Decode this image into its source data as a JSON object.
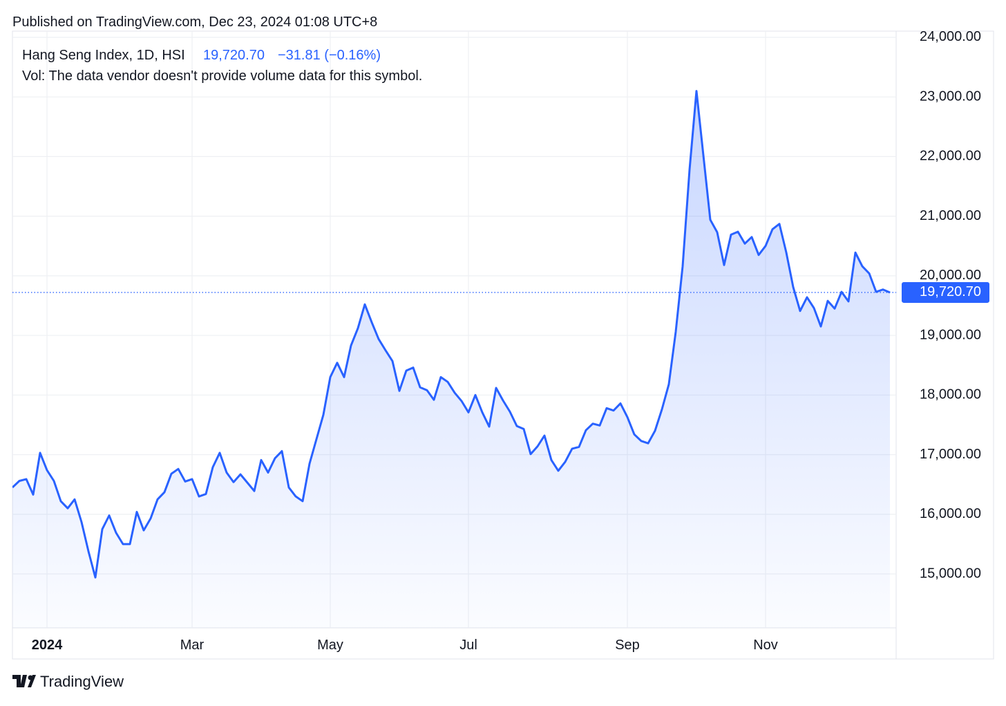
{
  "published": "Published on TradingView.com, Dec 23, 2024 01:08 UTC+8",
  "legend": {
    "symbol": "Hang Seng Index, 1D, HSI",
    "change": "−31.81 (−0.16%)",
    "vol_note": "Vol: The data vendor doesn't provide volume data for this symbol."
  },
  "footer": "TradingView",
  "chart_data": {
    "type": "area",
    "color": "#2962ff",
    "grid": true,
    "last_price": {
      "value": 19720.7,
      "label": "19,720.70"
    },
    "ylim": [
      14095,
      24104
    ],
    "yticks": [
      {
        "value": 15000,
        "label": "15,000.00"
      },
      {
        "value": 16000,
        "label": "16,000.00"
      },
      {
        "value": 17000,
        "label": "17,000.00"
      },
      {
        "value": 18000,
        "label": "18,000.00"
      },
      {
        "value": 19000,
        "label": "19,000.00"
      },
      {
        "value": 20000,
        "label": "20,000.00"
      },
      {
        "value": 21000,
        "label": "21,000.00"
      },
      {
        "value": 22000,
        "label": "22,000.00"
      },
      {
        "value": 23000,
        "label": "23,000.00"
      },
      {
        "value": 24000,
        "label": "24,000.00"
      }
    ],
    "categories": [
      null,
      null,
      null,
      null,
      null,
      "2024",
      null,
      null,
      null,
      null,
      null,
      null,
      null,
      null,
      null,
      null,
      null,
      null,
      null,
      null,
      null,
      null,
      null,
      null,
      null,
      null,
      "Mar",
      null,
      null,
      null,
      null,
      null,
      null,
      null,
      null,
      null,
      null,
      null,
      null,
      null,
      null,
      null,
      null,
      null,
      null,
      null,
      "May",
      null,
      null,
      null,
      null,
      null,
      null,
      null,
      null,
      null,
      null,
      null,
      null,
      null,
      null,
      null,
      null,
      null,
      null,
      null,
      "Jul",
      null,
      null,
      null,
      null,
      null,
      null,
      null,
      null,
      null,
      null,
      null,
      null,
      null,
      null,
      null,
      null,
      null,
      null,
      null,
      null,
      null,
      null,
      "Sep",
      null,
      null,
      null,
      null,
      null,
      null,
      null,
      null,
      null,
      null,
      null,
      null,
      null,
      null,
      null,
      null,
      null,
      null,
      null,
      "Nov",
      null,
      null,
      null,
      null,
      null,
      null,
      null,
      null,
      null,
      null,
      null,
      null,
      null,
      null,
      null,
      null,
      null,
      null
    ],
    "values": [
      16450,
      16560,
      16590,
      16330,
      17030,
      16740,
      16560,
      16220,
      16100,
      16250,
      15870,
      15380,
      14940,
      15750,
      15980,
      15690,
      15500,
      15500,
      16040,
      15730,
      15930,
      16250,
      16370,
      16680,
      16760,
      16550,
      16590,
      16300,
      16340,
      16790,
      17030,
      16700,
      16540,
      16670,
      16530,
      16390,
      16910,
      16700,
      16940,
      17060,
      16450,
      16300,
      16220,
      16850,
      17260,
      17670,
      18300,
      18540,
      18300,
      18830,
      19120,
      19520,
      19220,
      18940,
      18750,
      18570,
      18070,
      18410,
      18460,
      18130,
      18080,
      17920,
      18300,
      18220,
      18040,
      17900,
      17710,
      18000,
      17710,
      17470,
      18120,
      17910,
      17720,
      17480,
      17430,
      17010,
      17140,
      17320,
      16910,
      16730,
      16880,
      17100,
      17130,
      17410,
      17520,
      17490,
      17780,
      17740,
      17860,
      17630,
      17340,
      17230,
      17190,
      17400,
      17760,
      18180,
      19060,
      20160,
      21780,
      23100,
      22020,
      20940,
      20730,
      20180,
      20690,
      20740,
      20540,
      20650,
      20350,
      20500,
      20780,
      20870,
      20390,
      19810,
      19410,
      19640,
      19460,
      19150,
      19580,
      19450,
      19730,
      19570,
      20390,
      20160,
      20040,
      19730,
      19770,
      19720
    ]
  }
}
